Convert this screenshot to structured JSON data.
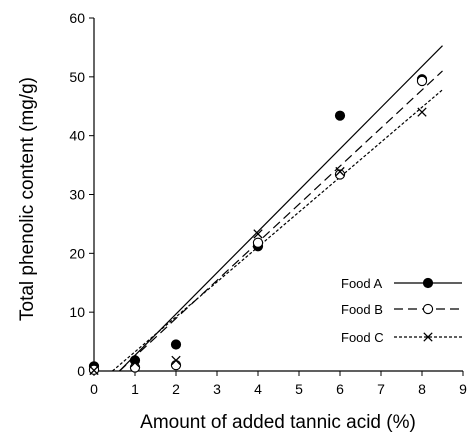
{
  "chart_data": {
    "type": "scatter",
    "title": "",
    "xlabel": "Amount of added tannic acid  (%)",
    "ylabel": "Total phenolic content (mg/g)",
    "xlim": [
      0,
      9
    ],
    "ylim": [
      0,
      60
    ],
    "xticks": [
      0,
      1,
      2,
      3,
      4,
      5,
      6,
      7,
      8,
      9
    ],
    "yticks": [
      0,
      10,
      20,
      30,
      40,
      50,
      60
    ],
    "grid": false,
    "legend_position": "bottom-right",
    "series": [
      {
        "name": "Food A",
        "marker": "filled-circle",
        "line_style": "solid",
        "x": [
          0,
          1,
          2,
          4,
          6,
          8
        ],
        "y": [
          0.8,
          1.8,
          4.5,
          21.2,
          43.4,
          49.6
        ],
        "fit": {
          "x": [
            0.62,
            8.5
          ],
          "y": [
            0,
            55.3
          ]
        }
      },
      {
        "name": "Food B",
        "marker": "open-circle",
        "line_style": "long-dash",
        "x": [
          0,
          1,
          2,
          4,
          6,
          8
        ],
        "y": [
          0.2,
          0.6,
          1.0,
          21.8,
          33.4,
          49.3
        ],
        "fit": {
          "x": [
            0.62,
            8.5
          ],
          "y": [
            0,
            51.0
          ]
        }
      },
      {
        "name": "Food C",
        "marker": "x-cross",
        "line_style": "short-dash",
        "x": [
          0,
          1,
          2,
          4,
          6,
          8
        ],
        "y": [
          0.1,
          1.4,
          1.8,
          23.3,
          33.9,
          44.0
        ],
        "fit": {
          "x": [
            0.45,
            8.5
          ],
          "y": [
            0,
            47.8
          ]
        }
      }
    ]
  }
}
